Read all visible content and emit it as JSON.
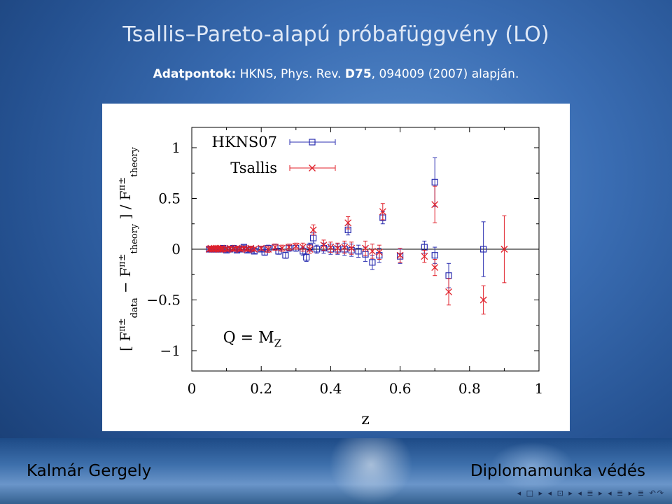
{
  "slide": {
    "title": "Tsallis–Pareto-alapú próbafüggvény (LO)",
    "subtitle": {
      "bold_label": "Adatpontok:",
      "text1": " HKNS, Phys. Rev. ",
      "bold_volume": "D75",
      "text2": ", 094009 (2007) alapján."
    }
  },
  "footer": {
    "author": "Kalmár Gergely",
    "talk": "Diplomamunka védés"
  },
  "navigation": {
    "icons": [
      "nav-first-icon",
      "nav-frame-icon",
      "nav-subsection-icon",
      "nav-section-icon",
      "nav-toc-icon",
      "nav-search-icon"
    ],
    "glyphs": [
      "◂ □ ▸",
      "◂ ⊡ ▸",
      "◂ ≣ ▸",
      "◂ ≣ ▸",
      "≣",
      "↶↷"
    ]
  },
  "chart_data": {
    "type": "scatter",
    "xlabel": "z",
    "ylabel_text": "[ F^π±_data − F^π±_theory ] / F^π±_theory",
    "ylabel_parts": {
      "open": "[ F",
      "data": "data",
      "minus": " − F",
      "theory": "theory",
      "close": " ] / F",
      "theory2": "theory",
      "pi": "π±"
    },
    "annotation": {
      "q": "Q = M",
      "sub": "Z"
    },
    "xlim": [
      0,
      1
    ],
    "ylim": [
      -1.2,
      1.2
    ],
    "x_ticks": [
      0,
      0.2,
      0.4,
      0.6,
      0.8,
      1
    ],
    "x_tick_labels": [
      "0",
      "0.2",
      "0.4",
      "0.6",
      "0.8",
      "1"
    ],
    "y_ticks": [
      -1,
      -0.5,
      0,
      0.5,
      1
    ],
    "y_tick_labels": [
      "−1",
      "−0.5",
      "0",
      "0.5",
      "1"
    ],
    "hline_y": 0,
    "series": [
      {
        "name": "HKNS07",
        "color": "#2b2fb0",
        "marker": "square",
        "points": [
          {
            "x": 0.05,
            "y": 0.0,
            "err": 0.02
          },
          {
            "x": 0.055,
            "y": 0.0,
            "err": 0.02
          },
          {
            "x": 0.06,
            "y": 0.0,
            "err": 0.02
          },
          {
            "x": 0.065,
            "y": 0.0,
            "err": 0.02
          },
          {
            "x": 0.07,
            "y": 0.0,
            "err": 0.02
          },
          {
            "x": 0.075,
            "y": 0.0,
            "err": 0.02
          },
          {
            "x": 0.08,
            "y": 0.0,
            "err": 0.02
          },
          {
            "x": 0.085,
            "y": 0.0,
            "err": 0.02
          },
          {
            "x": 0.09,
            "y": 0.01,
            "err": 0.02
          },
          {
            "x": 0.1,
            "y": -0.01,
            "err": 0.02
          },
          {
            "x": 0.11,
            "y": 0.0,
            "err": 0.02
          },
          {
            "x": 0.12,
            "y": 0.01,
            "err": 0.02
          },
          {
            "x": 0.13,
            "y": -0.01,
            "err": 0.02
          },
          {
            "x": 0.14,
            "y": 0.0,
            "err": 0.02
          },
          {
            "x": 0.15,
            "y": 0.02,
            "err": 0.02
          },
          {
            "x": 0.16,
            "y": -0.01,
            "err": 0.02
          },
          {
            "x": 0.17,
            "y": 0.0,
            "err": 0.02
          },
          {
            "x": 0.18,
            "y": -0.02,
            "err": 0.02
          },
          {
            "x": 0.2,
            "y": 0.0,
            "err": 0.02
          },
          {
            "x": 0.22,
            "y": 0.01,
            "err": 0.03
          },
          {
            "x": 0.24,
            "y": 0.02,
            "err": 0.03
          },
          {
            "x": 0.21,
            "y": -0.03,
            "err": 0.03
          },
          {
            "x": 0.25,
            "y": -0.02,
            "err": 0.03
          },
          {
            "x": 0.28,
            "y": 0.01,
            "err": 0.03
          },
          {
            "x": 0.3,
            "y": 0.01,
            "err": 0.03
          },
          {
            "x": 0.32,
            "y": -0.02,
            "err": 0.04
          },
          {
            "x": 0.34,
            "y": 0.02,
            "err": 0.04
          },
          {
            "x": 0.36,
            "y": 0.0,
            "err": 0.04
          },
          {
            "x": 0.38,
            "y": 0.01,
            "err": 0.05
          },
          {
            "x": 0.4,
            "y": 0.0,
            "err": 0.05
          },
          {
            "x": 0.42,
            "y": 0.0,
            "err": 0.05
          },
          {
            "x": 0.44,
            "y": 0.0,
            "err": 0.06
          },
          {
            "x": 0.46,
            "y": -0.01,
            "err": 0.06
          },
          {
            "x": 0.48,
            "y": -0.02,
            "err": 0.06
          },
          {
            "x": 0.5,
            "y": -0.05,
            "err": 0.07
          },
          {
            "x": 0.52,
            "y": -0.13,
            "err": 0.07
          },
          {
            "x": 0.54,
            "y": -0.06,
            "err": 0.07
          },
          {
            "x": 0.6,
            "y": -0.07,
            "err": 0.07
          },
          {
            "x": 0.67,
            "y": 0.02,
            "err": 0.06
          },
          {
            "x": 0.7,
            "y": -0.06,
            "err": 0.08
          },
          {
            "x": 0.27,
            "y": -0.06,
            "err": 0.03
          },
          {
            "x": 0.33,
            "y": -0.08,
            "err": 0.04
          },
          {
            "x": 0.35,
            "y": 0.11,
            "err": 0.05
          },
          {
            "x": 0.45,
            "y": 0.19,
            "err": 0.05
          },
          {
            "x": 0.55,
            "y": 0.31,
            "err": 0.06
          },
          {
            "x": 0.7,
            "y": 0.66,
            "err": 0.24
          },
          {
            "x": 0.74,
            "y": -0.26,
            "err": 0.12
          },
          {
            "x": 0.84,
            "y": 0.0,
            "err": 0.27
          }
        ]
      },
      {
        "name": "Tsallis",
        "color": "#e0202a",
        "marker": "cross",
        "points": [
          {
            "x": 0.05,
            "y": 0.0,
            "err": 0.02
          },
          {
            "x": 0.055,
            "y": 0.01,
            "err": 0.02
          },
          {
            "x": 0.06,
            "y": 0.0,
            "err": 0.02
          },
          {
            "x": 0.065,
            "y": 0.01,
            "err": 0.02
          },
          {
            "x": 0.07,
            "y": 0.0,
            "err": 0.02
          },
          {
            "x": 0.075,
            "y": 0.01,
            "err": 0.02
          },
          {
            "x": 0.08,
            "y": 0.0,
            "err": 0.02
          },
          {
            "x": 0.085,
            "y": 0.01,
            "err": 0.02
          },
          {
            "x": 0.09,
            "y": 0.0,
            "err": 0.02
          },
          {
            "x": 0.1,
            "y": 0.0,
            "err": 0.02
          },
          {
            "x": 0.11,
            "y": 0.01,
            "err": 0.02
          },
          {
            "x": 0.12,
            "y": 0.0,
            "err": 0.02
          },
          {
            "x": 0.13,
            "y": 0.01,
            "err": 0.02
          },
          {
            "x": 0.14,
            "y": 0.0,
            "err": 0.02
          },
          {
            "x": 0.15,
            "y": 0.01,
            "err": 0.02
          },
          {
            "x": 0.16,
            "y": 0.0,
            "err": 0.02
          },
          {
            "x": 0.17,
            "y": 0.01,
            "err": 0.02
          },
          {
            "x": 0.18,
            "y": 0.0,
            "err": 0.02
          },
          {
            "x": 0.2,
            "y": 0.01,
            "err": 0.02
          },
          {
            "x": 0.22,
            "y": 0.0,
            "err": 0.03
          },
          {
            "x": 0.24,
            "y": 0.02,
            "err": 0.03
          },
          {
            "x": 0.26,
            "y": 0.01,
            "err": 0.03
          },
          {
            "x": 0.28,
            "y": 0.02,
            "err": 0.03
          },
          {
            "x": 0.3,
            "y": 0.03,
            "err": 0.03
          },
          {
            "x": 0.32,
            "y": 0.02,
            "err": 0.04
          },
          {
            "x": 0.34,
            "y": 0.0,
            "err": 0.04
          },
          {
            "x": 0.35,
            "y": 0.19,
            "err": 0.05
          },
          {
            "x": 0.38,
            "y": 0.04,
            "err": 0.05
          },
          {
            "x": 0.4,
            "y": 0.02,
            "err": 0.05
          },
          {
            "x": 0.42,
            "y": 0.01,
            "err": 0.05
          },
          {
            "x": 0.44,
            "y": 0.02,
            "err": 0.06
          },
          {
            "x": 0.45,
            "y": 0.26,
            "err": 0.06
          },
          {
            "x": 0.46,
            "y": 0.01,
            "err": 0.06
          },
          {
            "x": 0.5,
            "y": 0.01,
            "err": 0.07
          },
          {
            "x": 0.52,
            "y": -0.02,
            "err": 0.07
          },
          {
            "x": 0.54,
            "y": -0.03,
            "err": 0.07
          },
          {
            "x": 0.55,
            "y": 0.37,
            "err": 0.08
          },
          {
            "x": 0.6,
            "y": -0.06,
            "err": 0.07
          },
          {
            "x": 0.67,
            "y": -0.07,
            "err": 0.06
          },
          {
            "x": 0.7,
            "y": 0.44,
            "err": 0.18
          },
          {
            "x": 0.7,
            "y": -0.18,
            "err": 0.08
          },
          {
            "x": 0.74,
            "y": -0.42,
            "err": 0.13
          },
          {
            "x": 0.84,
            "y": -0.5,
            "err": 0.14
          },
          {
            "x": 0.9,
            "y": 0.0,
            "err": 0.33
          }
        ]
      }
    ],
    "legend_placement": "top-left"
  }
}
